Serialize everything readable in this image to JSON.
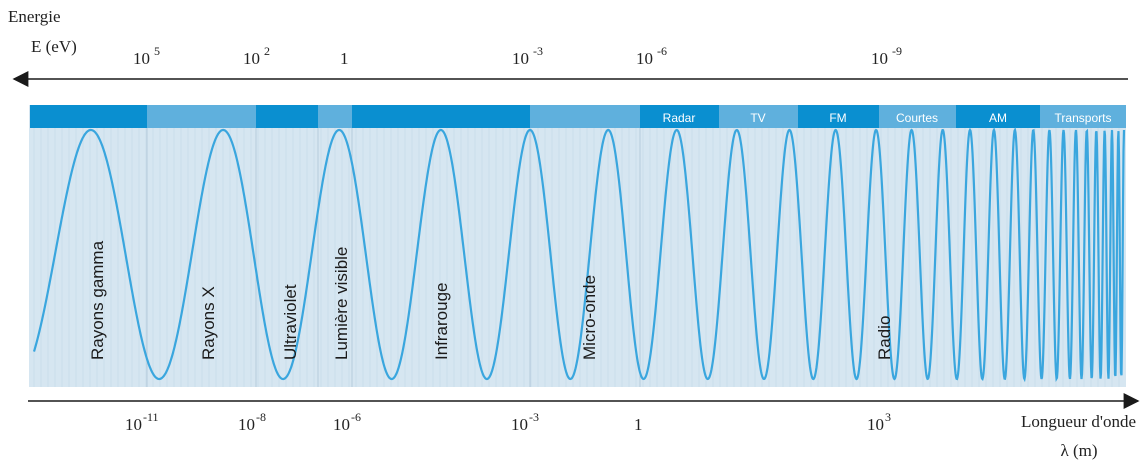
{
  "energy_axis": {
    "label_line1": "Energie",
    "label_line2": "E (eV)",
    "ticks": [
      {
        "base": "10",
        "exp": "5"
      },
      {
        "base": "10",
        "exp": "2"
      },
      {
        "base": "1",
        "exp": ""
      },
      {
        "base": "10",
        "exp": "-3"
      },
      {
        "base": "10",
        "exp": "-6"
      },
      {
        "base": "10",
        "exp": "-9"
      }
    ]
  },
  "wavelength_axis": {
    "label_line1": "Longueur d'onde",
    "label_line2": "λ (m)",
    "ticks": [
      {
        "base": "10",
        "exp": "-11"
      },
      {
        "base": "10",
        "exp": "-8"
      },
      {
        "base": "10",
        "exp": "-6"
      },
      {
        "base": "10",
        "exp": "-3"
      },
      {
        "base": "1",
        "exp": ""
      },
      {
        "base": "10",
        "exp": "3"
      }
    ]
  },
  "bands": [
    {
      "label": "Rayons gamma"
    },
    {
      "label": "Rayons X"
    },
    {
      "label": "Ultraviolet"
    },
    {
      "label": "Lumière visible"
    },
    {
      "label": "Infrarouge"
    },
    {
      "label": "Micro-onde"
    },
    {
      "label": "Radio"
    }
  ],
  "radio_subbands": [
    "Radar",
    "TV",
    "FM",
    "Courtes",
    "AM",
    "Transports"
  ],
  "colors": {
    "panel": "#d6e6f1",
    "bar_dark": "#0a8fd0",
    "bar_light": "#5fb0dd",
    "wave": "#3aa6de",
    "axis": "#1a1a1a"
  }
}
